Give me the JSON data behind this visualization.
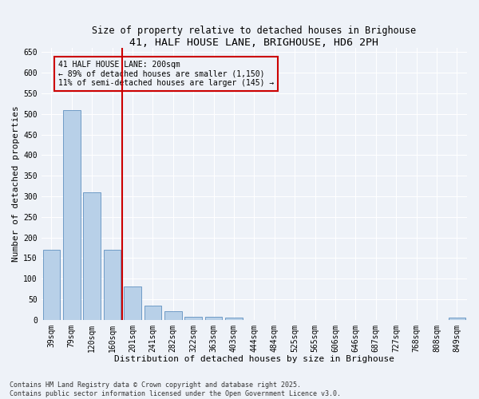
{
  "title": "41, HALF HOUSE LANE, BRIGHOUSE, HD6 2PH",
  "subtitle": "Size of property relative to detached houses in Brighouse",
  "xlabel": "Distribution of detached houses by size in Brighouse",
  "ylabel": "Number of detached properties",
  "bins": [
    "39sqm",
    "79sqm",
    "120sqm",
    "160sqm",
    "201sqm",
    "241sqm",
    "282sqm",
    "322sqm",
    "363sqm",
    "403sqm",
    "444sqm",
    "484sqm",
    "525sqm",
    "565sqm",
    "606sqm",
    "646sqm",
    "687sqm",
    "727sqm",
    "768sqm",
    "808sqm",
    "849sqm"
  ],
  "values": [
    170,
    510,
    310,
    170,
    80,
    35,
    20,
    8,
    8,
    5,
    0,
    0,
    0,
    0,
    0,
    0,
    0,
    0,
    0,
    0,
    5
  ],
  "bar_color": "#b8d0e8",
  "bar_edge_color": "#6090c0",
  "marker_line_color": "#cc0000",
  "annotation_text": "41 HALF HOUSE LANE: 200sqm\n← 89% of detached houses are smaller (1,150)\n11% of semi-detached houses are larger (145) →",
  "ylim": [
    0,
    660
  ],
  "yticks": [
    0,
    50,
    100,
    150,
    200,
    250,
    300,
    350,
    400,
    450,
    500,
    550,
    600,
    650
  ],
  "footer": "Contains HM Land Registry data © Crown copyright and database right 2025.\nContains public sector information licensed under the Open Government Licence v3.0.",
  "bg_color": "#eef2f8",
  "grid_color": "#ffffff",
  "title_fontsize": 9.5,
  "subtitle_fontsize": 8.5,
  "axis_label_fontsize": 8,
  "tick_fontsize": 7,
  "annotation_fontsize": 7,
  "footer_fontsize": 6
}
